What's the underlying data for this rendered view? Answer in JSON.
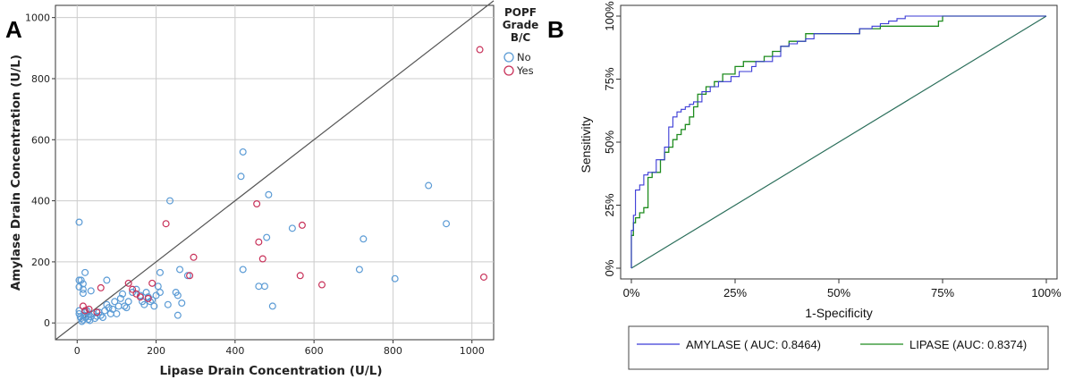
{
  "chart_data": [
    {
      "panel": "A",
      "type": "scatter",
      "xlabel": "Lipase Drain Concentration (U/L)",
      "ylabel": "Amylase Drain Concentration (U/L)",
      "xlim": [
        -55,
        1055
      ],
      "ylim": [
        -55,
        1040
      ],
      "xticks": [
        0,
        200,
        400,
        600,
        800,
        1000
      ],
      "yticks": [
        0,
        200,
        400,
        600,
        800,
        1000
      ],
      "grid": true,
      "legend": {
        "title": [
          "POPF",
          "Grade",
          "B/C"
        ],
        "position": "right",
        "entries": [
          "No",
          "Yes"
        ]
      },
      "colors": {
        "No": "#5b9bd5",
        "Yes": "#c8325a",
        "reference_line": "#555555",
        "grid": "#cccccc"
      },
      "reference_line": {
        "from": [
          -55,
          -55
        ],
        "to": [
          1055,
          1055
        ],
        "label": "y = x"
      },
      "series": [
        {
          "name": "No",
          "points": [
            [
              5,
              330
            ],
            [
              5,
              140
            ],
            [
              10,
              140
            ],
            [
              15,
              128
            ],
            [
              5,
              118
            ],
            [
              15,
              110
            ],
            [
              15,
              97
            ],
            [
              20,
              165
            ],
            [
              35,
              105
            ],
            [
              5,
              40
            ],
            [
              5,
              30
            ],
            [
              8,
              20
            ],
            [
              10,
              15
            ],
            [
              12,
              5
            ],
            [
              15,
              10
            ],
            [
              18,
              25
            ],
            [
              20,
              35
            ],
            [
              22,
              18
            ],
            [
              25,
              40
            ],
            [
              28,
              12
            ],
            [
              30,
              28
            ],
            [
              32,
              8
            ],
            [
              35,
              20
            ],
            [
              40,
              30
            ],
            [
              45,
              15
            ],
            [
              50,
              22
            ],
            [
              55,
              35
            ],
            [
              60,
              25
            ],
            [
              65,
              18
            ],
            [
              70,
              40
            ],
            [
              75,
              60
            ],
            [
              75,
              140
            ],
            [
              80,
              50
            ],
            [
              85,
              30
            ],
            [
              90,
              45
            ],
            [
              95,
              70
            ],
            [
              100,
              30
            ],
            [
              105,
              55
            ],
            [
              110,
              80
            ],
            [
              115,
              95
            ],
            [
              120,
              55
            ],
            [
              125,
              50
            ],
            [
              130,
              70
            ],
            [
              140,
              100
            ],
            [
              150,
              110
            ],
            [
              160,
              90
            ],
            [
              165,
              70
            ],
            [
              170,
              60
            ],
            [
              175,
              100
            ],
            [
              180,
              85
            ],
            [
              185,
              70
            ],
            [
              190,
              75
            ],
            [
              195,
              55
            ],
            [
              200,
              90
            ],
            [
              205,
              120
            ],
            [
              210,
              100
            ],
            [
              210,
              165
            ],
            [
              230,
              60
            ],
            [
              235,
              400
            ],
            [
              250,
              100
            ],
            [
              255,
              90
            ],
            [
              255,
              25
            ],
            [
              260,
              175
            ],
            [
              265,
              65
            ],
            [
              280,
              155
            ],
            [
              415,
              480
            ],
            [
              420,
              560
            ],
            [
              420,
              175
            ],
            [
              460,
              120
            ],
            [
              475,
              120
            ],
            [
              480,
              280
            ],
            [
              485,
              420
            ],
            [
              495,
              55
            ],
            [
              545,
              310
            ],
            [
              715,
              175
            ],
            [
              725,
              275
            ],
            [
              805,
              145
            ],
            [
              890,
              450
            ],
            [
              935,
              325
            ]
          ]
        },
        {
          "name": "Yes",
          "points": [
            [
              15,
              55
            ],
            [
              20,
              40
            ],
            [
              30,
              45
            ],
            [
              50,
              35
            ],
            [
              60,
              115
            ],
            [
              130,
              130
            ],
            [
              140,
              110
            ],
            [
              150,
              95
            ],
            [
              160,
              85
            ],
            [
              180,
              80
            ],
            [
              190,
              130
            ],
            [
              225,
              325
            ],
            [
              285,
              155
            ],
            [
              295,
              215
            ],
            [
              455,
              390
            ],
            [
              460,
              265
            ],
            [
              470,
              210
            ],
            [
              565,
              155
            ],
            [
              570,
              320
            ],
            [
              620,
              125
            ],
            [
              1020,
              895
            ],
            [
              1030,
              150
            ]
          ]
        }
      ]
    },
    {
      "panel": "B",
      "type": "line",
      "xlabel": "1-Specificity",
      "ylabel": "Sensitivity",
      "xlim": [
        0,
        1
      ],
      "ylim": [
        0,
        1
      ],
      "xticks": [
        "0%",
        "25%",
        "50%",
        "75%",
        "100%"
      ],
      "yticks": [
        "0%",
        "25%",
        "50%",
        "75%",
        "100%"
      ],
      "grid": false,
      "legend": {
        "position": "bottom",
        "entries": [
          "AMYLASE ( AUC: 0.8464)",
          "LIPASE (AUC: 0.8374)"
        ]
      },
      "colors": {
        "AMYLASE": "#3a3ad6",
        "LIPASE": "#1e8c1e",
        "reference_line": "#2a6e5a"
      },
      "reference_line": {
        "from": [
          0,
          0
        ],
        "to": [
          1,
          1
        ]
      },
      "series": [
        {
          "name": "AMYLASE ( AUC: 0.8464)",
          "x": [
            0,
            0,
            0.005,
            0.005,
            0.01,
            0.01,
            0.02,
            0.02,
            0.03,
            0.03,
            0.04,
            0.04,
            0.06,
            0.06,
            0.08,
            0.08,
            0.09,
            0.09,
            0.1,
            0.1,
            0.11,
            0.11,
            0.12,
            0.12,
            0.13,
            0.13,
            0.14,
            0.14,
            0.15,
            0.15,
            0.17,
            0.17,
            0.19,
            0.19,
            0.21,
            0.21,
            0.24,
            0.24,
            0.26,
            0.26,
            0.29,
            0.29,
            0.3,
            0.3,
            0.34,
            0.34,
            0.36,
            0.36,
            0.38,
            0.38,
            0.4,
            0.4,
            0.42,
            0.42,
            0.44,
            0.44,
            0.55,
            0.55,
            0.58,
            0.58,
            0.6,
            0.6,
            0.62,
            0.62,
            0.64,
            0.64,
            0.66,
            0.66,
            1
          ],
          "y": [
            0,
            0.15,
            0.15,
            0.21,
            0.21,
            0.31,
            0.31,
            0.33,
            0.33,
            0.37,
            0.37,
            0.38,
            0.38,
            0.43,
            0.43,
            0.48,
            0.48,
            0.56,
            0.56,
            0.6,
            0.6,
            0.62,
            0.62,
            0.63,
            0.63,
            0.64,
            0.64,
            0.65,
            0.65,
            0.66,
            0.66,
            0.7,
            0.7,
            0.72,
            0.72,
            0.74,
            0.74,
            0.76,
            0.76,
            0.78,
            0.78,
            0.8,
            0.8,
            0.82,
            0.82,
            0.84,
            0.84,
            0.88,
            0.88,
            0.89,
            0.89,
            0.9,
            0.9,
            0.91,
            0.91,
            0.93,
            0.93,
            0.95,
            0.95,
            0.96,
            0.96,
            0.97,
            0.97,
            0.98,
            0.98,
            0.99,
            0.99,
            1,
            1
          ]
        },
        {
          "name": "LIPASE (AUC: 0.8374)",
          "x": [
            0,
            0,
            0.005,
            0.005,
            0.01,
            0.01,
            0.02,
            0.02,
            0.03,
            0.03,
            0.04,
            0.04,
            0.05,
            0.05,
            0.07,
            0.07,
            0.08,
            0.08,
            0.09,
            0.09,
            0.1,
            0.1,
            0.11,
            0.11,
            0.12,
            0.12,
            0.13,
            0.13,
            0.14,
            0.14,
            0.15,
            0.15,
            0.16,
            0.16,
            0.18,
            0.18,
            0.2,
            0.2,
            0.22,
            0.22,
            0.25,
            0.25,
            0.27,
            0.27,
            0.32,
            0.32,
            0.34,
            0.34,
            0.36,
            0.36,
            0.38,
            0.38,
            0.42,
            0.42,
            0.55,
            0.55,
            0.6,
            0.6,
            0.74,
            0.74,
            0.75,
            0.75,
            1
          ],
          "y": [
            0,
            0.13,
            0.13,
            0.18,
            0.18,
            0.2,
            0.2,
            0.22,
            0.22,
            0.24,
            0.24,
            0.36,
            0.36,
            0.38,
            0.38,
            0.43,
            0.43,
            0.46,
            0.46,
            0.48,
            0.48,
            0.51,
            0.51,
            0.53,
            0.53,
            0.55,
            0.55,
            0.57,
            0.57,
            0.6,
            0.6,
            0.64,
            0.64,
            0.69,
            0.69,
            0.72,
            0.72,
            0.74,
            0.74,
            0.77,
            0.77,
            0.8,
            0.8,
            0.82,
            0.82,
            0.84,
            0.84,
            0.86,
            0.86,
            0.88,
            0.88,
            0.9,
            0.9,
            0.93,
            0.93,
            0.95,
            0.95,
            0.96,
            0.96,
            0.98,
            0.98,
            1,
            1
          ]
        }
      ]
    }
  ]
}
